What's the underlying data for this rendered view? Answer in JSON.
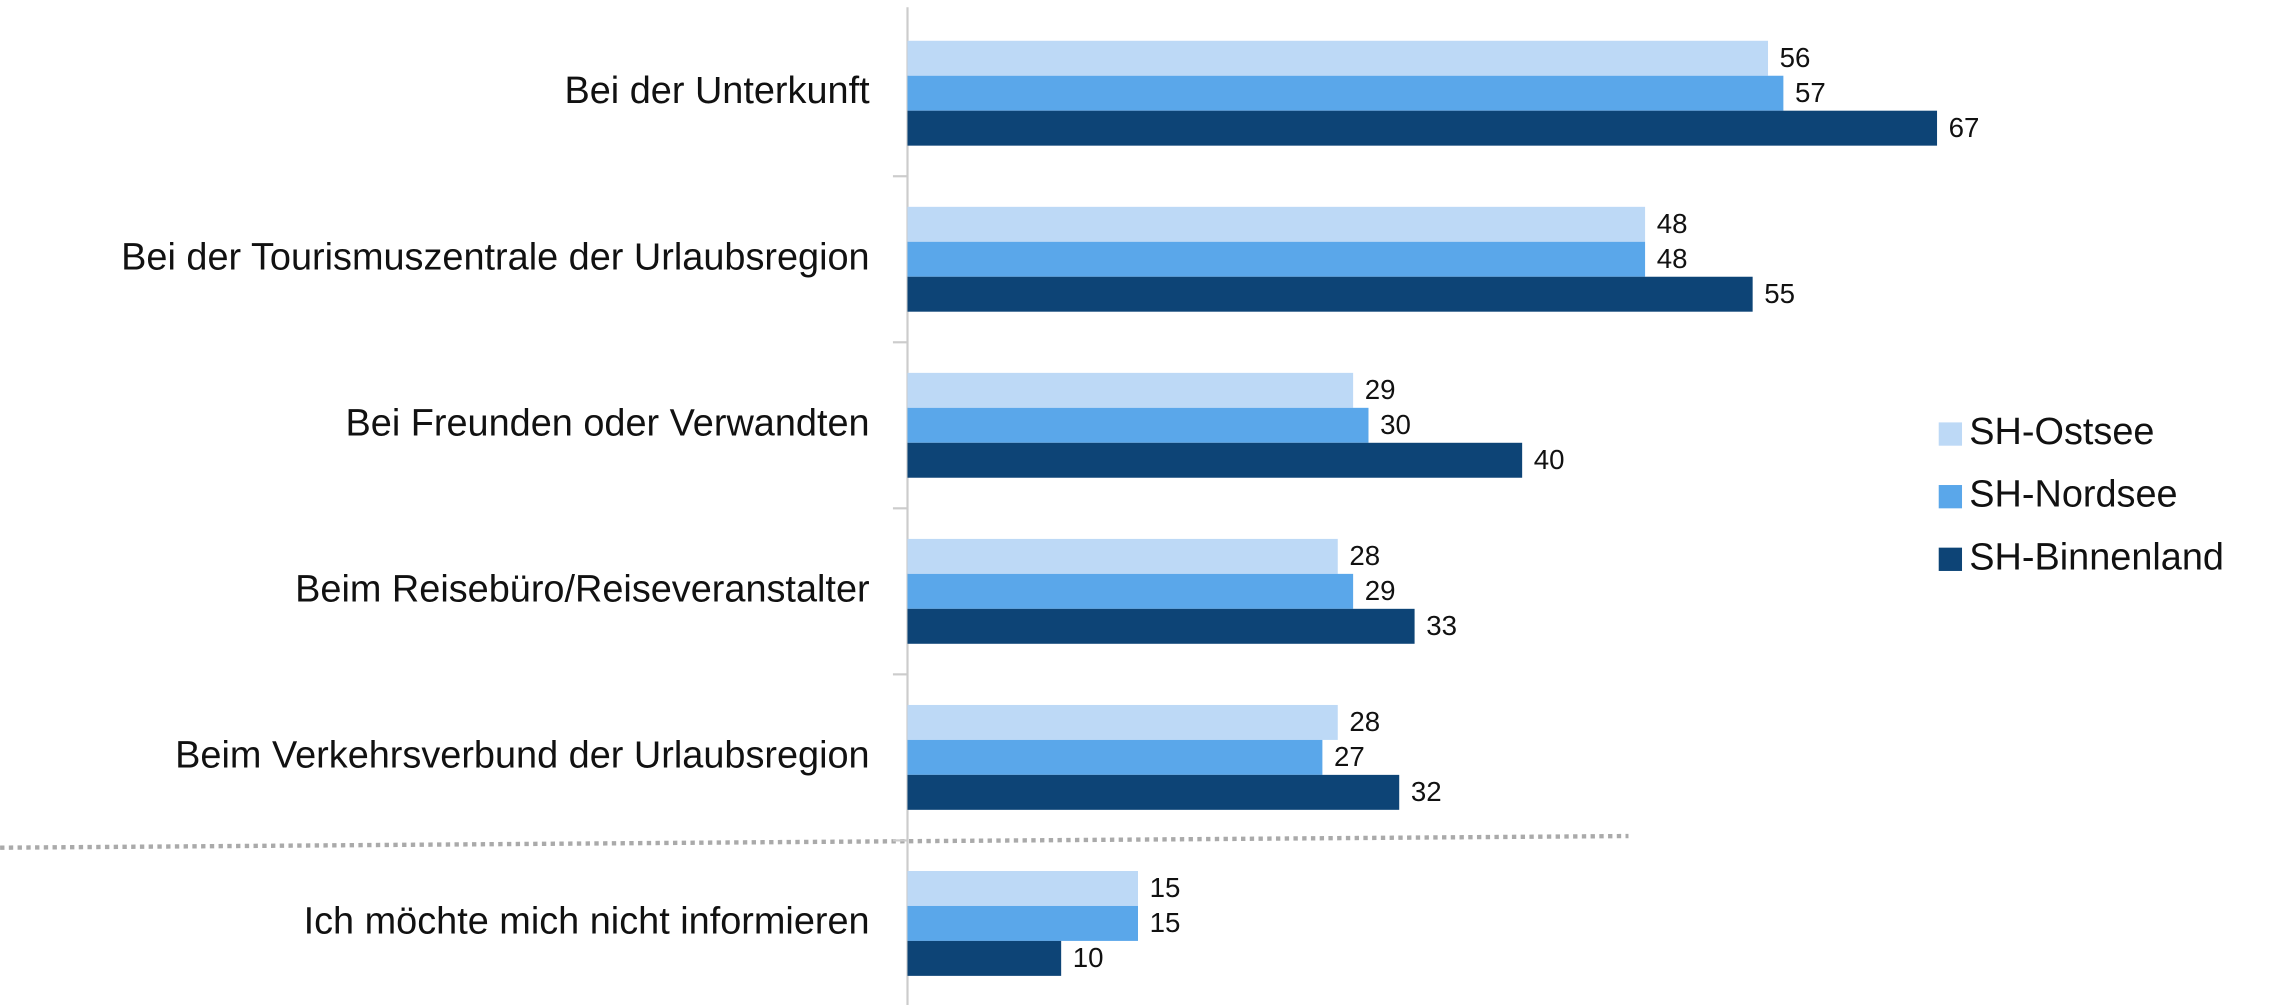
{
  "chart_data": {
    "type": "bar",
    "orientation": "horizontal",
    "categories": [
      "Bei der Unterkunft",
      "Bei der Tourismuszentrale der Urlaubsregion",
      "Bei Freunden oder Verwandten",
      "Beim Reisebüro/Reiseveranstalter",
      "Beim Verkehrsverbund der Urlaubsregion",
      "Ich möchte mich nicht informieren"
    ],
    "series": [
      {
        "name": "SH-Ostsee",
        "color": "#bdd9f6",
        "values": [
          56,
          48,
          29,
          28,
          28,
          15
        ]
      },
      {
        "name": "SH-Nordsee",
        "color": "#5aa7ea",
        "values": [
          57,
          48,
          30,
          29,
          27,
          15
        ]
      },
      {
        "name": "SH-Binnenland",
        "color": "#0d4476",
        "values": [
          67,
          55,
          40,
          33,
          32,
          10
        ]
      }
    ],
    "legend": "right"
  }
}
